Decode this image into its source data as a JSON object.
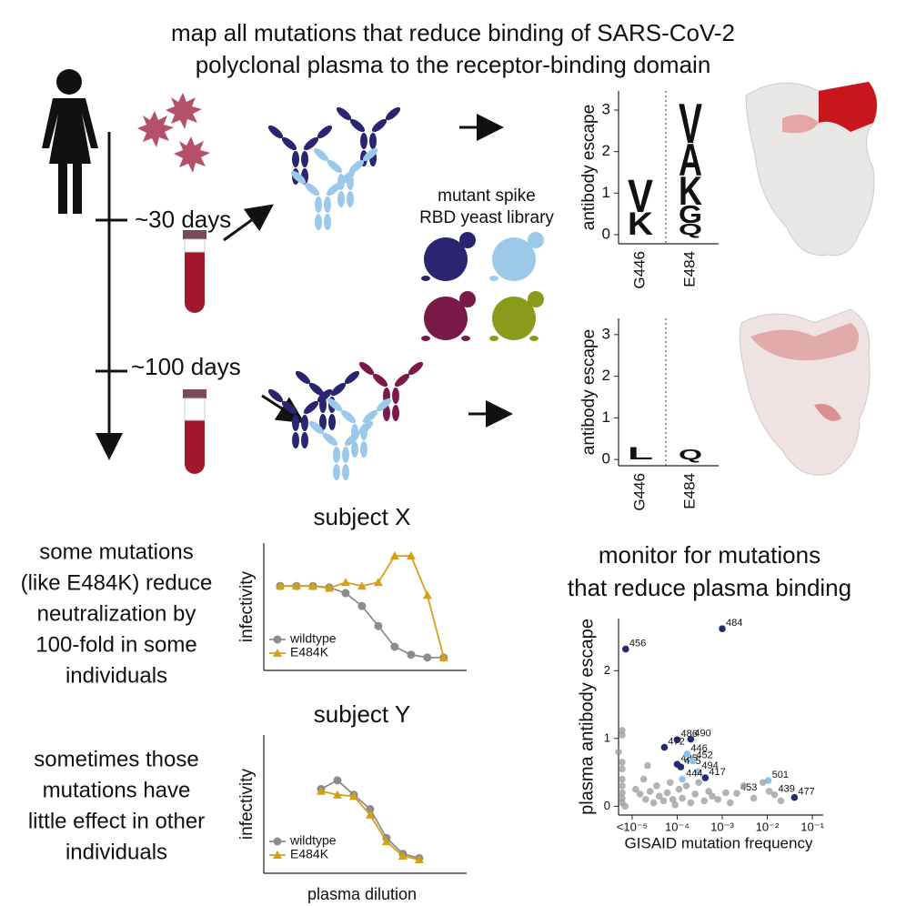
{
  "title": [
    "map all mutations that reduce binding of SARS-CoV-2",
    "polyclonal plasma to the receptor-binding domain"
  ],
  "timepoints": [
    "~30 days",
    "~100 days"
  ],
  "library": [
    "mutant spike",
    "RBD yeast library"
  ],
  "notes": {
    "effect": [
      "some mutations",
      "(like E484K) reduce",
      "neutralization by",
      "100-fold in some",
      "individuals"
    ],
    "no_effect": [
      "sometimes those",
      "mutations have",
      "little effect in other",
      "individuals"
    ],
    "monitor": [
      "monitor for mutations",
      "that reduce plasma binding"
    ]
  },
  "chart_data": [
    {
      "type": "logo",
      "ylabel": "antibody escape",
      "categories": [
        "G446",
        "E484"
      ],
      "colors": [
        "#9cc9ea",
        "#2a2471"
      ],
      "stacks": [
        [
          {
            "letter": "K",
            "value": 0.55
          },
          {
            "letter": "V",
            "value": 0.8
          }
        ],
        [
          {
            "letter": "Q",
            "value": 0.28
          },
          {
            "letter": "G",
            "value": 0.44
          },
          {
            "letter": "K",
            "value": 0.7
          },
          {
            "letter": "A",
            "value": 0.79
          },
          {
            "letter": "V",
            "value": 0.98
          }
        ]
      ],
      "ylim": [
        -0.22,
        3.46
      ],
      "yticks": [
        0,
        1,
        2,
        3
      ]
    },
    {
      "type": "logo",
      "ylabel": "antibody escape",
      "categories": [
        "G446",
        "E484"
      ],
      "colors": [
        "#9cc9ea",
        "#2a2471"
      ],
      "stacks": [
        [
          {
            "letter": "L",
            "value": 0.3
          }
        ],
        [
          {
            "letter": "Q",
            "value": 0.25
          }
        ]
      ],
      "ylim": [
        -0.15,
        3.39
      ],
      "yticks": [
        0,
        1,
        2,
        3
      ]
    },
    {
      "type": "line",
      "title": "subject X",
      "ylabel": "infectivity",
      "x": [
        1,
        2,
        3,
        4,
        5,
        6,
        7,
        8,
        9,
        10,
        11
      ],
      "series": [
        {
          "name": "wildtype",
          "color": "#8c8c8c",
          "marker": "circle",
          "values": [
            1.0,
            1.0,
            1.0,
            0.98,
            0.9,
            0.72,
            0.44,
            0.15,
            0.04,
            0.0,
            0.0
          ]
        },
        {
          "name": "E484K",
          "color": "#d4a017",
          "marker": "triangle",
          "values": [
            1.0,
            1.0,
            1.0,
            0.97,
            1.05,
            1.0,
            1.05,
            1.42,
            1.42,
            0.87,
            0.0
          ]
        }
      ],
      "xlim": [
        0,
        12.4
      ],
      "ylim": [
        -0.18,
        1.6
      ]
    },
    {
      "type": "line",
      "title": "subject Y",
      "ylabel": "infectivity",
      "xlabel": "plasma dilution",
      "x": [
        3.5,
        4.5,
        5.5,
        6.5,
        7.5,
        8.5,
        9.5
      ],
      "series": [
        {
          "name": "wildtype",
          "color": "#8c8c8c",
          "marker": "circle",
          "values": [
            0.98,
            1.1,
            0.9,
            0.7,
            0.3,
            0.08,
            0.02
          ]
        },
        {
          "name": "E484K",
          "color": "#d4a017",
          "marker": "triangle",
          "values": [
            0.95,
            0.9,
            0.88,
            0.62,
            0.25,
            0.05,
            0.0
          ]
        }
      ],
      "xlim": [
        0,
        12.4
      ],
      "ylim": [
        -0.19,
        1.73
      ]
    },
    {
      "type": "scatter",
      "ylabel": "plasma antibody escape",
      "xlabel": "GISAID mutation frequency",
      "xscale": "log",
      "series": [
        {
          "color": "#232a6e",
          "x": [
            7.2e-06,
            0.001,
            0.0001,
            0.0002,
            5.2e-05,
            0.0001,
            0.00012,
            0.00042,
            0.04
          ],
          "values": [
            2.32,
            2.62,
            0.98,
            0.99,
            0.87,
            0.62,
            0.58,
            0.42,
            0.13
          ],
          "labels": [
            "456",
            "484",
            "486",
            "490",
            "472",
            "485",
            "455",
            "417",
            "477"
          ]
        },
        {
          "color": "#8cc3ea",
          "x": [
            0.000166,
            0.00022,
            0.00029,
            0.00013,
            0.0105
          ],
          "values": [
            0.77,
            0.67,
            0.51,
            0.4,
            0.38
          ],
          "labels": [
            "446",
            "452",
            "494",
            "444",
            "501"
          ]
        },
        {
          "color": "#9a9a9a",
          "x": [
            0.0021,
            0.0145,
            6e-06,
            6e-06,
            6e-06,
            6e-06,
            6e-06,
            6e-06,
            6e-06,
            6e-06,
            6e-06,
            7e-06,
            1.2e-05,
            1.5e-05,
            2e-05,
            2.5e-05,
            3e-05,
            3.5e-05,
            4e-05,
            5e-05,
            6e-05,
            7e-05,
            8e-05,
            9e-05,
            0.00011,
            0.00013,
            0.00016,
            0.0002,
            0.00025,
            0.0003,
            0.0004,
            0.0005,
            0.0006,
            0.0008,
            0.0012,
            0.0015,
            0.003,
            0.005,
            0.008,
            0.011,
            0.02,
            5e-06,
            1.8e-05,
            2.2e-05
          ],
          "values": [
            0.19,
            0.17,
            1.12,
            1.05,
            0.65,
            0.55,
            0.4,
            0.3,
            0.2,
            0.12,
            0.05,
            0.0,
            0.25,
            0.18,
            0.1,
            0.22,
            0.05,
            0.3,
            0.15,
            0.08,
            0.2,
            0.35,
            0.1,
            0.02,
            0.25,
            0.12,
            0.3,
            0.05,
            0.18,
            0.35,
            0.08,
            0.22,
            0.15,
            0.1,
            0.2,
            0.05,
            0.3,
            0.12,
            0.35,
            0.22,
            0.08,
            0.8,
            0.4,
            0.6
          ],
          "labels": [
            "453",
            "439",
            null,
            null,
            null,
            null,
            null,
            null,
            null,
            null,
            null,
            null,
            null,
            null,
            null,
            null,
            null,
            null,
            null,
            null,
            null,
            null,
            null,
            null,
            null,
            null,
            null,
            null,
            null,
            null,
            null,
            null,
            null,
            null,
            null,
            null,
            null,
            null,
            null,
            null,
            null,
            null,
            null,
            null
          ]
        }
      ],
      "xlim": [
        5e-06,
        0.174
      ],
      "ylim": [
        -0.13,
        2.77
      ],
      "xticks": [
        {
          "value": 1e-05,
          "label": "<10⁻⁵"
        },
        {
          "value": 0.0001,
          "label": "10⁻⁴"
        },
        {
          "value": 0.001,
          "label": "10⁻³"
        },
        {
          "value": 0.01,
          "label": "10⁻²"
        },
        {
          "value": 0.1,
          "label": "10⁻¹"
        }
      ],
      "yticks": [
        0,
        1,
        2
      ]
    }
  ]
}
